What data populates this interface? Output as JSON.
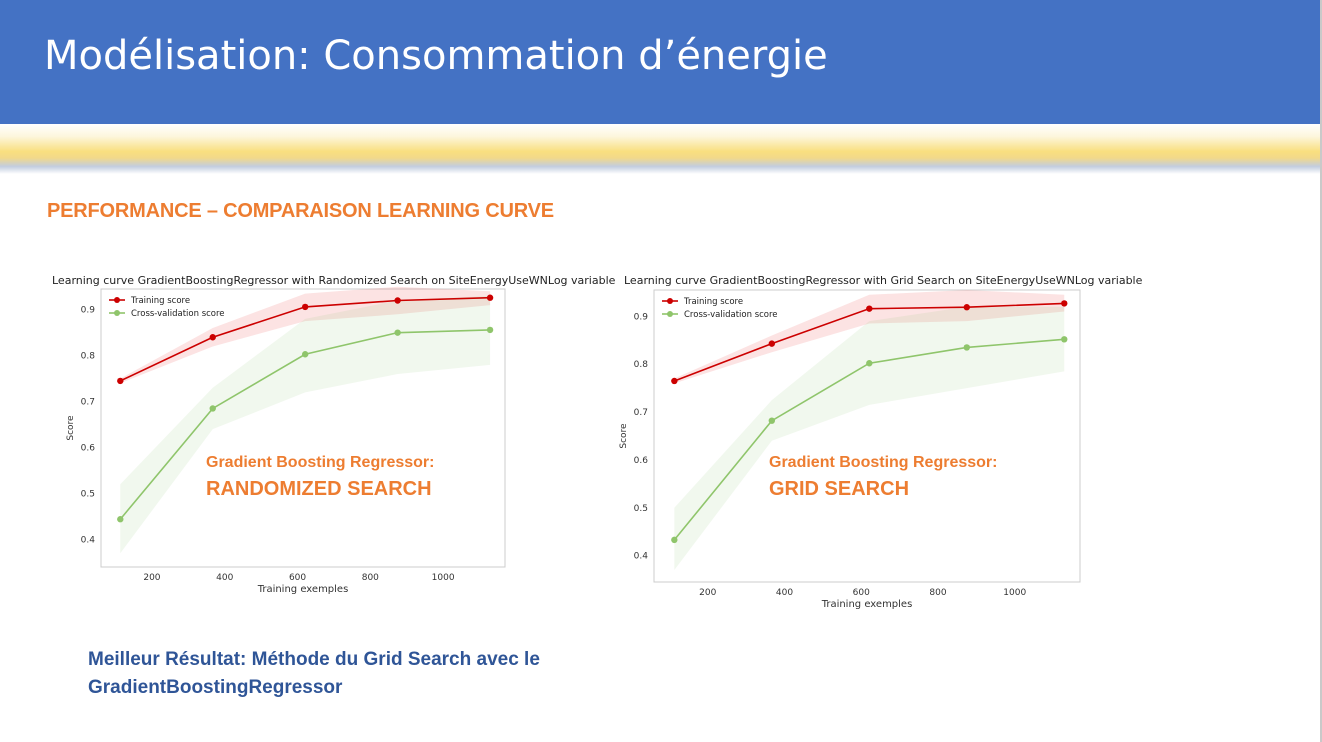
{
  "slide": {
    "title": "Modélisation: Consommation d’énergie",
    "section_title": "PERFORMANCE – COMPARAISON LEARNING CURVE",
    "conclusion_line1": "Meilleur Résultat: Méthode du Grid Search avec le",
    "conclusion_line2": "GradientBoostingRegressor"
  },
  "colors": {
    "header": "#4472c4",
    "accent": "#ed7d31",
    "conclusion": "#2f5597",
    "training": "#cc0000",
    "cv": "#8fc56b"
  },
  "chart_data": [
    {
      "type": "line",
      "title": "Learning curve GradientBoostingRegressor with Randomized Search on SiteEnergyUseWNLog variable",
      "xlabel": "Training exemples",
      "ylabel": "Score",
      "xticks": [
        200,
        400,
        600,
        800,
        1000
      ],
      "yticks": [
        0.4,
        0.5,
        0.6,
        0.7,
        0.8,
        0.9
      ],
      "xlim": [
        60,
        1170
      ],
      "ylim": [
        0.34,
        0.945
      ],
      "grid": false,
      "legend": "top-left",
      "x": [
        113,
        367,
        621,
        875,
        1129
      ],
      "series": [
        {
          "name": "Training score",
          "values": [
            0.745,
            0.84,
            0.906,
            0.92,
            0.926
          ],
          "band_low": [
            0.74,
            0.82,
            0.875,
            0.89,
            0.91
          ],
          "band_high": [
            0.75,
            0.86,
            0.935,
            0.95,
            0.94
          ]
        },
        {
          "name": "Cross-validation score",
          "values": [
            0.444,
            0.685,
            0.803,
            0.85,
            0.856
          ],
          "band_low": [
            0.37,
            0.64,
            0.72,
            0.76,
            0.78
          ],
          "band_high": [
            0.52,
            0.73,
            0.88,
            0.92,
            0.93
          ]
        }
      ],
      "annotation_line1": "Gradient Boosting Regressor:",
      "annotation_line2": "RANDOMIZED SEARCH"
    },
    {
      "type": "line",
      "title": "Learning curve GradientBoostingRegressor with Grid Search on SiteEnergyUseWNLog variable",
      "xlabel": "Training exemples",
      "ylabel": "Score",
      "xticks": [
        200,
        400,
        600,
        800,
        1000
      ],
      "yticks": [
        0.4,
        0.5,
        0.6,
        0.7,
        0.8,
        0.9
      ],
      "xlim": [
        60,
        1170
      ],
      "ylim": [
        0.345,
        0.955
      ],
      "grid": false,
      "legend": "top-left",
      "x": [
        113,
        367,
        621,
        875,
        1129
      ],
      "series": [
        {
          "name": "Training score",
          "values": [
            0.765,
            0.843,
            0.916,
            0.919,
            0.927
          ],
          "band_low": [
            0.76,
            0.825,
            0.885,
            0.89,
            0.91
          ],
          "band_high": [
            0.77,
            0.86,
            0.945,
            0.955,
            0.945
          ]
        },
        {
          "name": "Cross-validation score",
          "values": [
            0.433,
            0.682,
            0.802,
            0.835,
            0.852
          ],
          "band_low": [
            0.37,
            0.64,
            0.715,
            0.75,
            0.785
          ],
          "band_high": [
            0.5,
            0.725,
            0.89,
            0.92,
            0.92
          ]
        }
      ],
      "annotation_line1": "Gradient Boosting Regressor:",
      "annotation_line2": "GRID SEARCH"
    }
  ]
}
